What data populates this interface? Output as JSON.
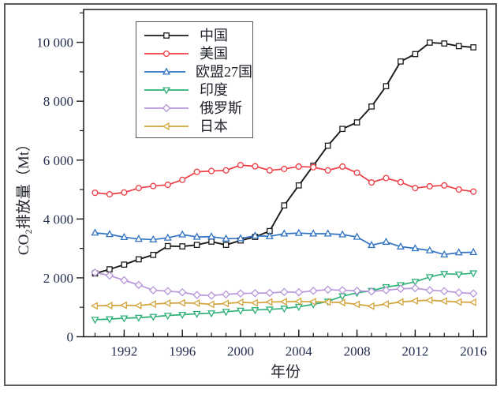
{
  "figure": {
    "xlabel": "年份",
    "ylabel": "CO₂排放量（Mt）"
  },
  "chart_data": {
    "type": "line",
    "title": "",
    "xlabel": "年份",
    "ylabel": "CO₂排放量（Mt）",
    "grid": false,
    "legend_position": "top-left-inside",
    "x": [
      1990,
      1991,
      1992,
      1993,
      1994,
      1995,
      1996,
      1997,
      1998,
      1999,
      2000,
      2001,
      2002,
      2003,
      2004,
      2005,
      2006,
      2007,
      2008,
      2009,
      2010,
      2011,
      2012,
      2013,
      2014,
      2015,
      2016
    ],
    "series": [
      {
        "id": "china",
        "name": "中国",
        "color": "#1a1a1a",
        "marker": "square",
        "values": [
          2150,
          2290,
          2450,
          2630,
          2780,
          3080,
          3070,
          3120,
          3230,
          3120,
          3270,
          3390,
          3590,
          4460,
          5140,
          5810,
          6490,
          7060,
          7280,
          7820,
          8510,
          9350,
          9600,
          9990,
          9960,
          9870,
          9830
        ]
      },
      {
        "id": "usa",
        "name": "美国",
        "color": "#ee3b43",
        "marker": "circle",
        "values": [
          4890,
          4840,
          4900,
          5050,
          5120,
          5160,
          5330,
          5600,
          5630,
          5650,
          5830,
          5790,
          5650,
          5700,
          5780,
          5760,
          5650,
          5780,
          5570,
          5240,
          5390,
          5250,
          5050,
          5110,
          5140,
          5000,
          4930
        ]
      },
      {
        "id": "eu27",
        "name": "欧盟27国",
        "color": "#3173c2",
        "marker": "triangle-up",
        "values": [
          3530,
          3480,
          3380,
          3320,
          3300,
          3360,
          3470,
          3390,
          3400,
          3330,
          3340,
          3430,
          3410,
          3500,
          3520,
          3500,
          3500,
          3470,
          3390,
          3110,
          3220,
          3060,
          3000,
          2930,
          2790,
          2860,
          2870
        ]
      },
      {
        "id": "india",
        "name": "印度",
        "color": "#2fb079",
        "marker": "triangle-down",
        "values": [
          580,
          600,
          630,
          650,
          680,
          720,
          750,
          780,
          800,
          850,
          890,
          910,
          930,
          960,
          1020,
          1100,
          1200,
          1380,
          1490,
          1560,
          1690,
          1760,
          1870,
          2030,
          2140,
          2120,
          2160
        ]
      },
      {
        "id": "russia",
        "name": "俄罗斯",
        "color": "#b795da",
        "marker": "diamond",
        "values": [
          2180,
          2080,
          1920,
          1760,
          1580,
          1550,
          1510,
          1420,
          1400,
          1440,
          1470,
          1480,
          1490,
          1520,
          1510,
          1560,
          1600,
          1580,
          1560,
          1540,
          1580,
          1630,
          1650,
          1580,
          1550,
          1500,
          1470
        ]
      },
      {
        "id": "japan",
        "name": "日本",
        "color": "#d2a43c",
        "marker": "triangle-left",
        "values": [
          1050,
          1060,
          1070,
          1060,
          1110,
          1140,
          1150,
          1140,
          1100,
          1130,
          1170,
          1150,
          1180,
          1190,
          1200,
          1190,
          1180,
          1160,
          1100,
          1040,
          1110,
          1180,
          1220,
          1240,
          1210,
          1180,
          1170
        ]
      }
    ],
    "y_axis": {
      "range": [
        0,
        11100
      ],
      "majors": [
        {
          "value": 0,
          "label": "0"
        },
        {
          "value": 2000,
          "label": "2 000"
        },
        {
          "value": 4000,
          "label": "4 000"
        },
        {
          "value": 6000,
          "label": "6 000"
        },
        {
          "value": 8000,
          "label": "8 000"
        },
        {
          "value": 10000,
          "label": "10 000"
        }
      ],
      "minors": [
        1000,
        3000,
        5000,
        7000,
        9000,
        11000
      ]
    },
    "x_axis": {
      "range": [
        1989,
        2017
      ],
      "majors": [
        1992,
        1996,
        2000,
        2004,
        2008,
        2012,
        2016
      ],
      "minor_step": 1
    },
    "legend_entries": [
      "中国",
      "美国",
      "欧盟27国",
      "印度",
      "俄罗斯",
      "日本"
    ]
  },
  "colors": {
    "frame": "#5a5a60",
    "axis": "#1a1a1a",
    "tick_label": "#253050",
    "cjk_text": "#21242c",
    "background": "#ffffff"
  }
}
